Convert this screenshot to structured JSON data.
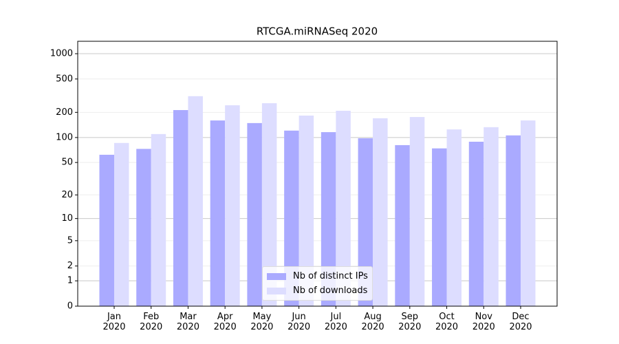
{
  "chart_data": {
    "type": "bar",
    "title": "RTCGA.miRNASeq 2020",
    "categories": [
      "Jan\n2020",
      "Feb\n2020",
      "Mar\n2020",
      "Apr\n2020",
      "May\n2020",
      "Jun\n2020",
      "Jul\n2020",
      "Aug\n2020",
      "Sep\n2020",
      "Oct\n2020",
      "Nov\n2020",
      "Dec\n2020"
    ],
    "series": [
      {
        "name": "Nb of distinct IPs",
        "color": "#aaaaff",
        "values": [
          62,
          73,
          213,
          160,
          149,
          121,
          116,
          98,
          81,
          74,
          89,
          106
        ]
      },
      {
        "name": "Nb of downloads",
        "color": "#ddddff",
        "values": [
          86,
          110,
          312,
          243,
          257,
          183,
          209,
          170,
          176,
          125,
          133,
          160
        ]
      }
    ],
    "yscale": "log1p",
    "ylim": [
      0,
      1405
    ],
    "yticks": [
      0,
      1,
      2,
      5,
      10,
      20,
      50,
      100,
      200,
      500,
      1000
    ],
    "grid": true,
    "legend": "lower center"
  }
}
